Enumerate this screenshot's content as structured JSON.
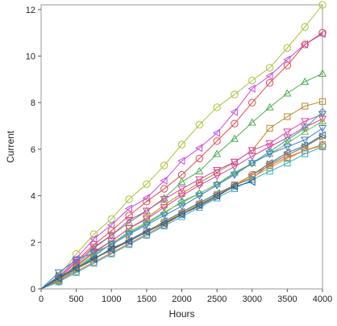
{
  "chart_data": {
    "type": "line",
    "title": "",
    "xlabel": "Hours",
    "ylabel": "Current",
    "xlim": [
      0,
      4000
    ],
    "ylim": [
      0,
      12.2
    ],
    "xticks": [
      0,
      500,
      1000,
      1500,
      2000,
      2500,
      3000,
      3500,
      4000
    ],
    "yticks": [
      0,
      2,
      4,
      6,
      8,
      10,
      12
    ],
    "grid": false,
    "legend": "none",
    "x": [
      0,
      250,
      500,
      750,
      1000,
      1250,
      1500,
      1750,
      2000,
      2250,
      2500,
      2750,
      3000,
      3250,
      3500,
      3750,
      4000
    ],
    "series": [
      {
        "color": "#a8c232",
        "marker": "circle",
        "values": [
          0,
          0.55,
          1.5,
          2.35,
          3.0,
          3.85,
          4.5,
          5.3,
          6.2,
          7.05,
          7.8,
          8.35,
          8.95,
          9.5,
          10.35,
          11.25,
          12.2
        ]
      },
      {
        "color": "#c54bd8",
        "marker": "triangle-left",
        "values": [
          0,
          0.5,
          1.3,
          2.15,
          2.75,
          3.45,
          3.9,
          4.65,
          5.5,
          6.05,
          6.7,
          7.6,
          8.6,
          9.15,
          9.85,
          10.5,
          10.95
        ]
      },
      {
        "color": "#e34b4b",
        "marker": "circle",
        "values": [
          0,
          0.45,
          1.2,
          1.9,
          2.5,
          3.15,
          3.75,
          4.3,
          4.9,
          5.6,
          6.35,
          7.1,
          8.0,
          8.85,
          9.6,
          10.5,
          11.0
        ]
      },
      {
        "color": "#4caf50",
        "marker": "triangle",
        "values": [
          0,
          0.4,
          1.05,
          1.75,
          2.3,
          2.85,
          3.35,
          3.9,
          4.6,
          5.05,
          5.8,
          6.45,
          7.15,
          7.8,
          8.4,
          8.9,
          9.25
        ]
      },
      {
        "color": "#b88a2a",
        "marker": "square",
        "values": [
          0,
          0.35,
          0.95,
          1.55,
          2.05,
          2.6,
          3.05,
          3.6,
          4.1,
          4.55,
          5.0,
          5.45,
          5.95,
          6.9,
          7.4,
          7.85,
          8.05
        ]
      },
      {
        "color": "#d946a6",
        "marker": "triangle-down",
        "values": [
          0,
          0.45,
          1.15,
          1.8,
          2.3,
          2.95,
          3.35,
          3.85,
          4.3,
          4.7,
          5.1,
          5.45,
          5.95,
          6.25,
          6.75,
          7.2,
          7.5
        ]
      },
      {
        "color": "#e040a0",
        "marker": "triangle-down",
        "values": [
          0,
          0.4,
          1.0,
          1.6,
          2.05,
          2.6,
          3.0,
          3.5,
          4.0,
          4.45,
          4.85,
          5.25,
          5.7,
          6.1,
          6.5,
          6.95,
          7.3
        ]
      },
      {
        "color": "#2aa8a8",
        "marker": "diamond",
        "values": [
          0,
          0.3,
          0.85,
          1.4,
          1.95,
          2.4,
          2.8,
          3.25,
          3.75,
          4.1,
          4.5,
          4.95,
          5.4,
          5.9,
          6.4,
          6.9,
          7.6
        ]
      },
      {
        "color": "#7bbf3e",
        "marker": "triangle",
        "values": [
          0,
          0.35,
          0.9,
          1.45,
          1.95,
          2.45,
          2.85,
          3.3,
          3.7,
          4.1,
          4.5,
          5.0,
          5.4,
          5.8,
          6.25,
          6.75,
          7.2
        ]
      },
      {
        "color": "#3a7fd5",
        "marker": "triangle-down",
        "values": [
          0,
          0.7,
          1.25,
          1.55,
          1.9,
          2.35,
          2.75,
          3.15,
          3.55,
          4.0,
          4.45,
          4.9,
          5.4,
          5.8,
          6.1,
          6.4,
          6.9
        ]
      },
      {
        "color": "#3a6f8a",
        "marker": "triangle-left",
        "values": [
          0,
          0.5,
          0.85,
          1.25,
          1.75,
          2.05,
          2.45,
          2.9,
          3.3,
          3.7,
          4.1,
          4.45,
          4.9,
          5.4,
          5.85,
          6.15,
          6.6
        ]
      },
      {
        "color": "#707070",
        "marker": "triangle-right",
        "values": [
          0,
          0.55,
          0.85,
          1.3,
          1.7,
          2.1,
          2.5,
          2.85,
          3.2,
          3.55,
          3.95,
          4.45,
          4.75,
          5.35,
          5.75,
          6.1,
          6.55
        ]
      },
      {
        "color": "#c9a227",
        "marker": "square",
        "values": [
          0,
          0.4,
          0.85,
          1.3,
          1.65,
          2.05,
          2.45,
          2.85,
          3.25,
          3.65,
          4.05,
          4.45,
          4.8,
          5.2,
          5.6,
          5.95,
          6.2
        ]
      },
      {
        "color": "#e06a3a",
        "marker": "circle",
        "values": [
          0,
          0.35,
          0.75,
          1.15,
          1.55,
          1.95,
          2.35,
          2.75,
          3.2,
          3.6,
          4.0,
          4.45,
          4.9,
          5.3,
          5.65,
          5.95,
          6.15
        ]
      },
      {
        "color": "#30b0c0",
        "marker": "square",
        "values": [
          0,
          0.3,
          0.7,
          1.1,
          1.5,
          1.9,
          2.3,
          2.7,
          3.1,
          3.5,
          3.9,
          4.3,
          4.7,
          5.05,
          5.4,
          5.8,
          6.1
        ]
      },
      {
        "color": "#1f5aa8",
        "marker": "triangle-left",
        "values": [
          0,
          0.45,
          0.9,
          1.3,
          1.7,
          2.05,
          2.45,
          2.8,
          3.2,
          3.6,
          4.0,
          4.4,
          4.6,
          null,
          null,
          null,
          null
        ]
      }
    ]
  }
}
